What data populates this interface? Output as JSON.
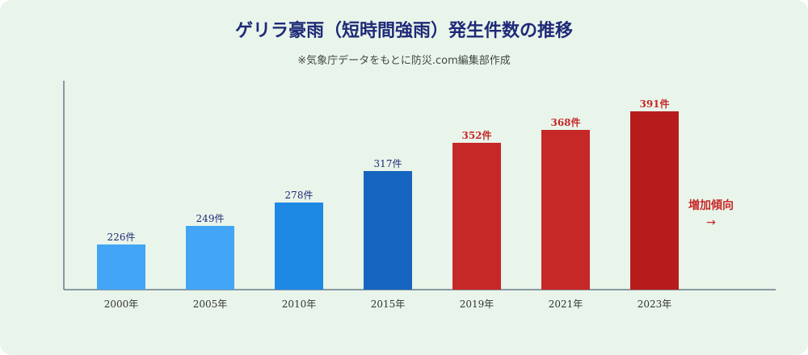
{
  "header": {
    "title": "ゲリラ豪雨（短時間強雨）発生件数の推移",
    "subtitle": "※気象庁データをもとに防災.com編集部作成"
  },
  "trend": {
    "label": "増加傾向",
    "arrow": "→"
  },
  "colors": {
    "background": "#e9f5ea",
    "title": "#1f2a78",
    "axis": "#6b7b8c",
    "blue_label": "#1f2a78",
    "red_label": "#c62828"
  },
  "chart_data": {
    "type": "bar",
    "categories": [
      "2000年",
      "2005年",
      "2010年",
      "2015年",
      "2019年",
      "2021年",
      "2023年"
    ],
    "values": [
      226,
      249,
      278,
      317,
      352,
      368,
      391
    ],
    "value_labels": [
      "226件",
      "249件",
      "278件",
      "317件",
      "352件",
      "368件",
      "391件"
    ],
    "bar_colors": [
      "#42a5f5",
      "#42a5f5",
      "#1e88e5",
      "#1565c0",
      "#c62828",
      "#c62828",
      "#b71c1c"
    ],
    "label_colors": [
      "#1f2a78",
      "#1f2a78",
      "#1f2a78",
      "#1f2a78",
      "#c62828",
      "#c62828",
      "#c62828"
    ],
    "title": "ゲリラ豪雨（短時間強雨）発生件数の推移",
    "xlabel": "",
    "ylabel": "",
    "grid": false,
    "legend": "none"
  }
}
